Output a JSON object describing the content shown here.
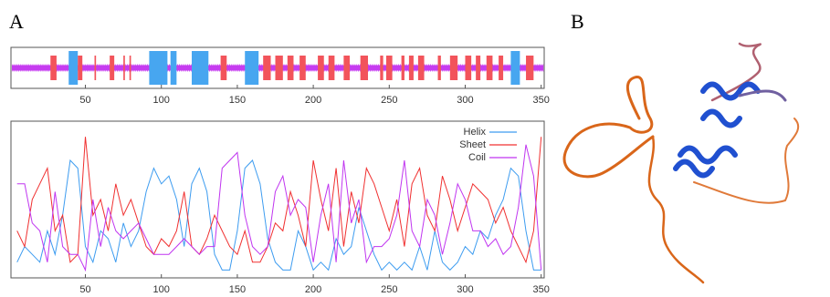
{
  "panel_labels": [
    "A",
    "B"
  ],
  "chart_data": [
    {
      "type": "track",
      "xlim": [
        1,
        352
      ],
      "xticks": [
        50,
        100,
        150,
        200,
        250,
        300,
        350
      ],
      "coil_color": "#c63cf0",
      "helix_color": "#47a6f0",
      "sheet_color": "#f2545b",
      "helix_regions": [
        [
          39,
          45
        ],
        [
          92,
          104
        ],
        [
          106,
          110
        ],
        [
          120,
          131
        ],
        [
          155,
          164
        ],
        [
          330,
          336
        ]
      ],
      "sheet_regions": [
        [
          27,
          31
        ],
        [
          45,
          48
        ],
        [
          56,
          57
        ],
        [
          66,
          69
        ],
        [
          75,
          76
        ],
        [
          79,
          80
        ],
        [
          139,
          143
        ],
        [
          167,
          172
        ],
        [
          175,
          180
        ],
        [
          183,
          187
        ],
        [
          191,
          195
        ],
        [
          203,
          207
        ],
        [
          210,
          214
        ],
        [
          220,
          224
        ],
        [
          231,
          236
        ],
        [
          244,
          246
        ],
        [
          248,
          252
        ],
        [
          258,
          260
        ],
        [
          263,
          266
        ],
        [
          269,
          273
        ],
        [
          282,
          284
        ],
        [
          290,
          295
        ],
        [
          300,
          304
        ],
        [
          307,
          310
        ],
        [
          314,
          318
        ],
        [
          322,
          325
        ],
        [
          340,
          345
        ]
      ]
    },
    {
      "type": "line",
      "xlim": [
        1,
        352
      ],
      "ylim": [
        0,
        1
      ],
      "xticks": [
        50,
        100,
        150,
        200,
        250,
        300,
        350
      ],
      "x": [
        5,
        10,
        15,
        20,
        25,
        30,
        35,
        40,
        45,
        50,
        55,
        60,
        65,
        70,
        75,
        80,
        85,
        90,
        95,
        100,
        105,
        110,
        115,
        120,
        125,
        130,
        135,
        140,
        145,
        150,
        155,
        160,
        165,
        170,
        175,
        180,
        185,
        190,
        195,
        200,
        205,
        210,
        215,
        220,
        225,
        230,
        235,
        240,
        245,
        250,
        255,
        260,
        265,
        270,
        275,
        280,
        285,
        290,
        295,
        300,
        305,
        310,
        315,
        320,
        325,
        330,
        335,
        340,
        345,
        350
      ],
      "series": [
        {
          "name": "Helix",
          "color": "#3d9cf0",
          "values": [
            0.1,
            0.2,
            0.15,
            0.1,
            0.3,
            0.15,
            0.4,
            0.75,
            0.7,
            0.2,
            0.1,
            0.3,
            0.25,
            0.1,
            0.35,
            0.2,
            0.3,
            0.55,
            0.7,
            0.6,
            0.65,
            0.5,
            0.2,
            0.6,
            0.7,
            0.55,
            0.15,
            0.05,
            0.05,
            0.3,
            0.7,
            0.75,
            0.6,
            0.25,
            0.1,
            0.05,
            0.05,
            0.3,
            0.2,
            0.05,
            0.1,
            0.05,
            0.25,
            0.15,
            0.2,
            0.45,
            0.3,
            0.15,
            0.05,
            0.1,
            0.05,
            0.1,
            0.05,
            0.2,
            0.05,
            0.3,
            0.1,
            0.05,
            0.1,
            0.2,
            0.15,
            0.3,
            0.25,
            0.4,
            0.5,
            0.7,
            0.65,
            0.3,
            0.05,
            0.05
          ]
        },
        {
          "name": "Sheet",
          "color": "#f03030",
          "values": [
            0.3,
            0.2,
            0.5,
            0.6,
            0.7,
            0.3,
            0.4,
            0.1,
            0.15,
            0.9,
            0.4,
            0.5,
            0.3,
            0.6,
            0.4,
            0.5,
            0.35,
            0.2,
            0.15,
            0.25,
            0.2,
            0.3,
            0.55,
            0.2,
            0.15,
            0.25,
            0.4,
            0.3,
            0.2,
            0.15,
            0.3,
            0.1,
            0.1,
            0.2,
            0.35,
            0.3,
            0.55,
            0.4,
            0.2,
            0.75,
            0.5,
            0.3,
            0.7,
            0.2,
            0.55,
            0.35,
            0.7,
            0.6,
            0.45,
            0.3,
            0.5,
            0.2,
            0.6,
            0.7,
            0.4,
            0.3,
            0.65,
            0.5,
            0.3,
            0.45,
            0.6,
            0.55,
            0.5,
            0.35,
            0.45,
            0.3,
            0.2,
            0.1,
            0.3,
            0.9
          ]
        },
        {
          "name": "Coil",
          "color": "#c035f0",
          "values": [
            0.6,
            0.6,
            0.35,
            0.3,
            0.1,
            0.55,
            0.2,
            0.15,
            0.15,
            0.05,
            0.5,
            0.2,
            0.45,
            0.3,
            0.25,
            0.3,
            0.35,
            0.25,
            0.15,
            0.15,
            0.15,
            0.2,
            0.25,
            0.2,
            0.15,
            0.2,
            0.2,
            0.7,
            0.75,
            0.8,
            0.4,
            0.2,
            0.15,
            0.2,
            0.55,
            0.65,
            0.4,
            0.5,
            0.45,
            0.1,
            0.4,
            0.6,
            0.1,
            0.75,
            0.35,
            0.5,
            0.1,
            0.2,
            0.2,
            0.25,
            0.4,
            0.75,
            0.3,
            0.2,
            0.5,
            0.4,
            0.15,
            0.35,
            0.6,
            0.5,
            0.3,
            0.3,
            0.2,
            0.25,
            0.15,
            0.2,
            0.45,
            0.85,
            0.65,
            0.05
          ]
        }
      ],
      "legend": "upper right",
      "grid": false
    }
  ]
}
